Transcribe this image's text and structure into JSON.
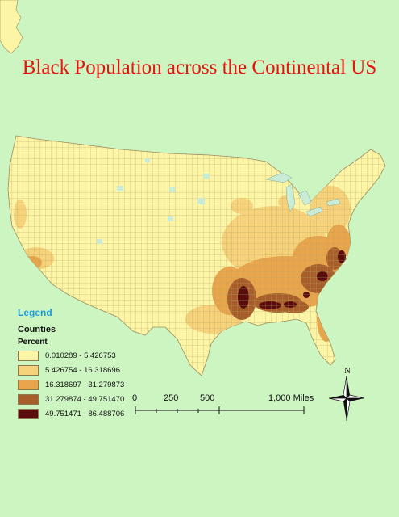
{
  "title": "Black Population across the Continental US",
  "legend": {
    "heading": "Legend",
    "layer": "Counties",
    "field": "Percent",
    "classes": [
      {
        "label": "0.010289 - 5.426753",
        "color": "#fdf5a6"
      },
      {
        "label": "5.426754 - 16.318696",
        "color": "#f6d27a"
      },
      {
        "label": "16.318697 - 31.279873",
        "color": "#e8a54b"
      },
      {
        "label": "31.279874 - 49.751470",
        "color": "#a85e2b"
      },
      {
        "label": "49.751471 - 86.488706",
        "color": "#5a0c0c"
      }
    ]
  },
  "scale_bar": {
    "labels": [
      "0",
      "250",
      "500",
      "1,000 Miles"
    ]
  },
  "north_arrow": {
    "label": "N"
  },
  "colors": {
    "background": "#cdf5c2",
    "title": "#e8140e",
    "legend_heading": "#1e9bd6",
    "water": "#c9ecd9",
    "county_border": "#9a8d5a"
  }
}
